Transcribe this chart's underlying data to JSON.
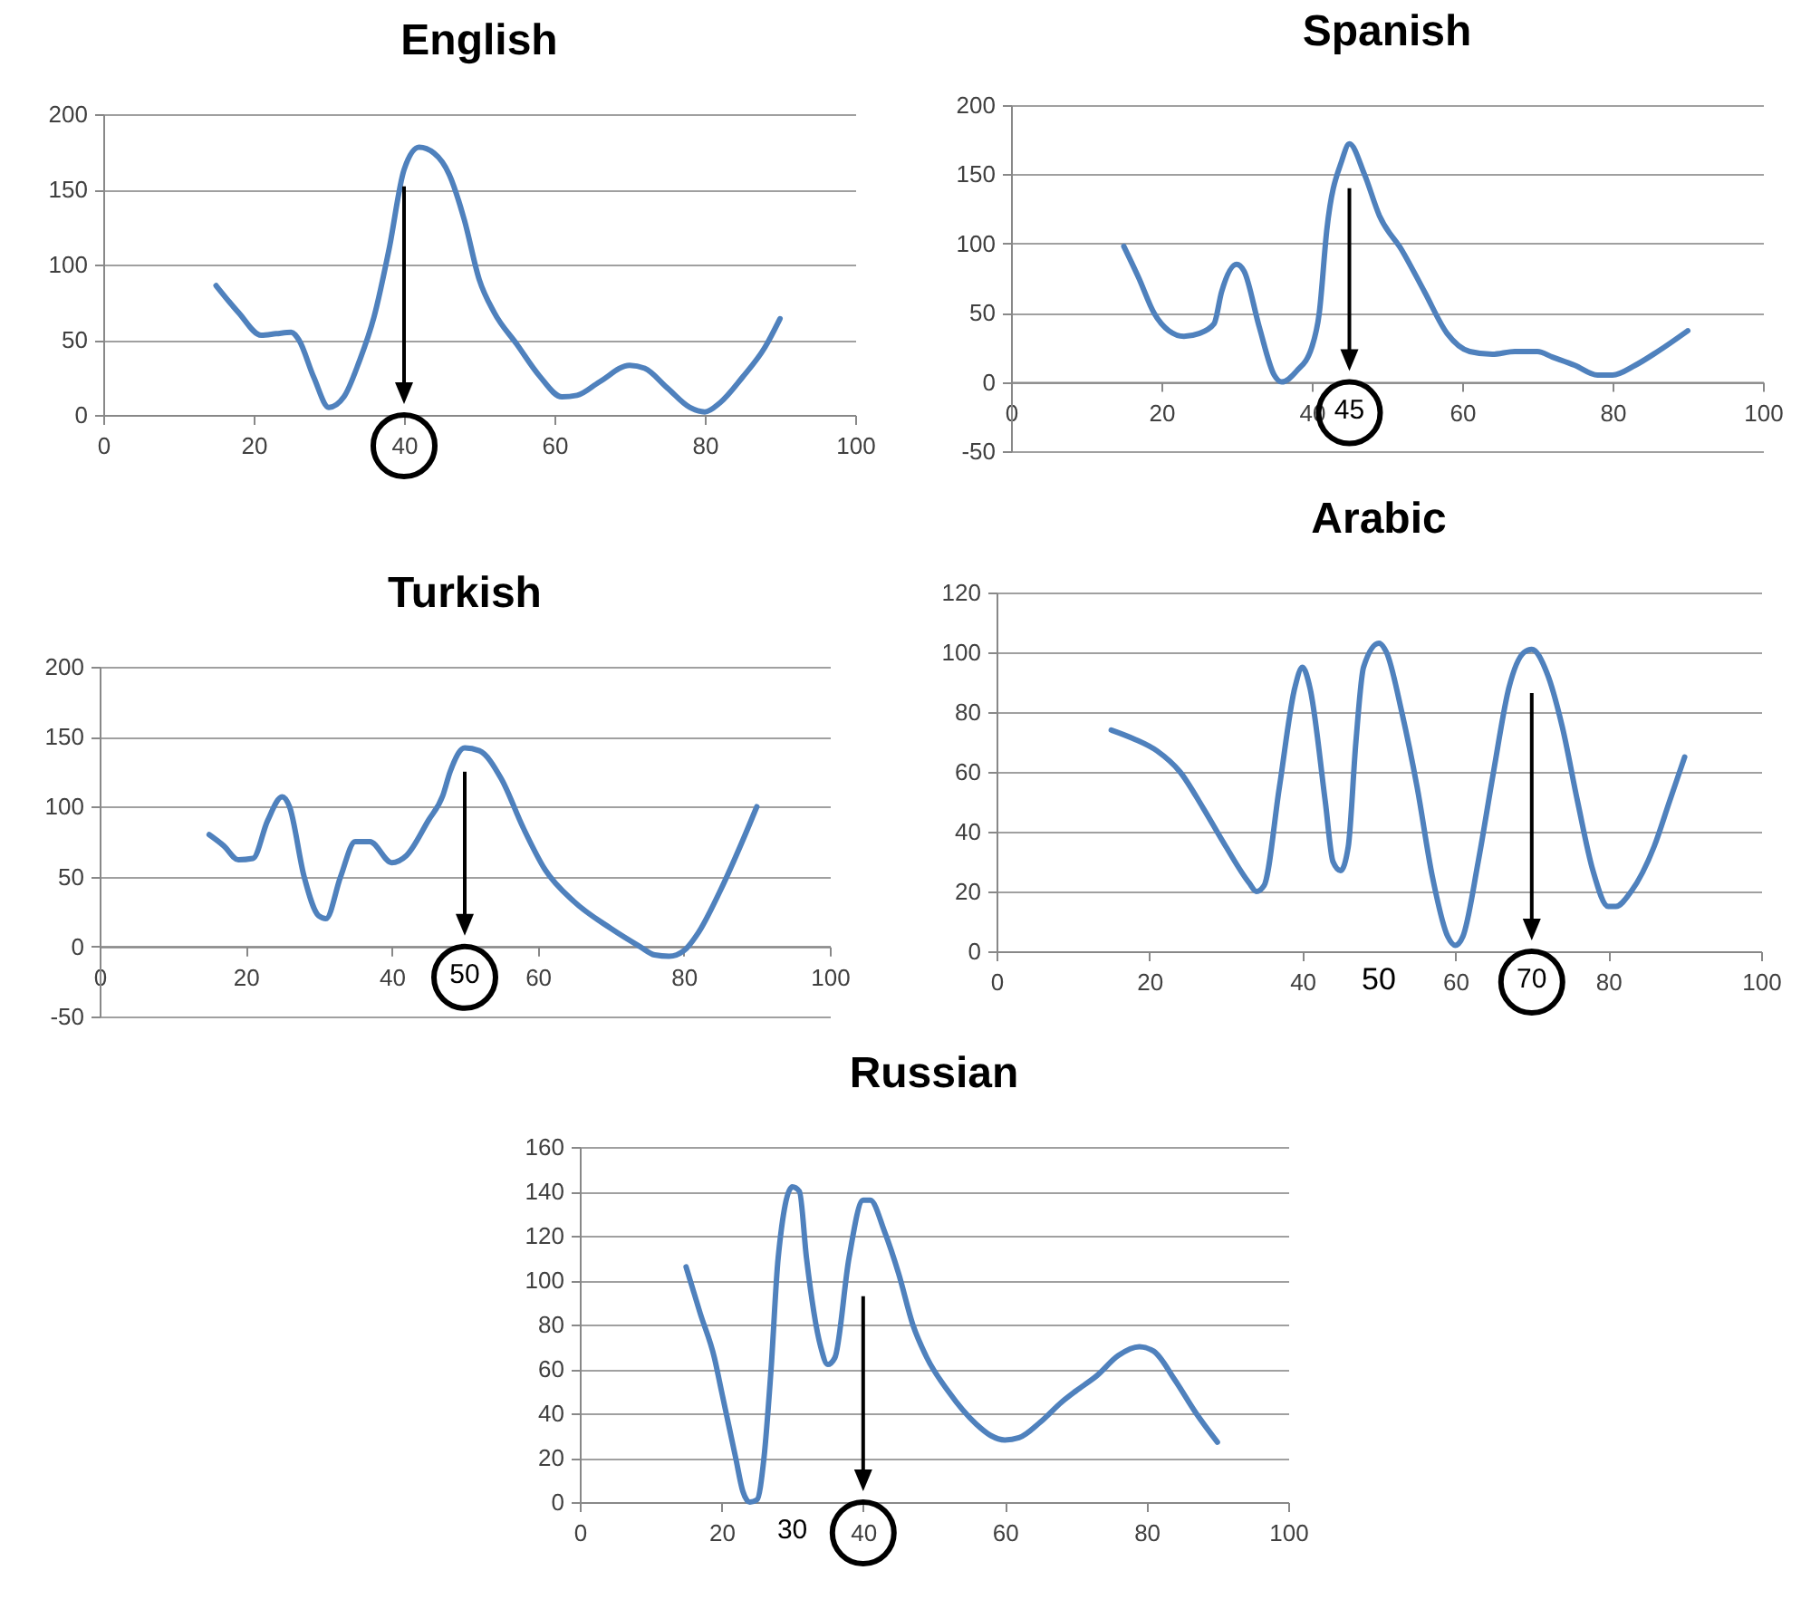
{
  "chart_data": [
    {
      "type": "line",
      "title": "English",
      "x": [
        15,
        18,
        21,
        23,
        25,
        26,
        28,
        30,
        32,
        34,
        36,
        38,
        40,
        42,
        44,
        46,
        48,
        50,
        52,
        55,
        58,
        61,
        63,
        66,
        70,
        72,
        75,
        78,
        80,
        82,
        85,
        88,
        90
      ],
      "series": [
        {
          "color": "#4f81bd",
          "values": [
            86,
            68,
            53,
            54,
            55,
            50,
            25,
            5,
            12,
            35,
            65,
            110,
            163,
            178,
            174,
            160,
            130,
            90,
            68,
            47,
            26,
            12,
            13,
            22,
            33,
            31,
            18,
            5,
            2,
            8,
            25,
            45,
            64
          ]
        }
      ],
      "xlim": [
        0,
        100
      ],
      "xticks": [
        0,
        20,
        40,
        60,
        80,
        100
      ],
      "ylim": [
        0,
        200
      ],
      "yticks": [
        0,
        50,
        100,
        150,
        200
      ],
      "grid": "y"
    },
    {
      "type": "line",
      "title": "Spanish",
      "x": [
        15,
        17,
        19,
        21,
        23,
        25,
        27,
        28,
        30,
        31,
        33,
        35,
        36,
        38,
        40,
        41,
        42,
        44,
        45,
        47,
        49,
        52,
        55,
        58,
        61,
        64,
        67,
        70,
        72,
        75,
        78,
        80,
        83,
        86,
        90
      ],
      "series": [
        {
          "color": "#4f81bd",
          "values": [
            98,
            75,
            50,
            37,
            33,
            35,
            42,
            65,
            85,
            80,
            40,
            5,
            0,
            8,
            25,
            50,
            110,
            160,
            172,
            150,
            120,
            95,
            65,
            35,
            22,
            20,
            22,
            22,
            18,
            12,
            5,
            5,
            12,
            22,
            37
          ]
        }
      ],
      "xlim": [
        0,
        100
      ],
      "xticks": [
        0,
        20,
        40,
        60,
        80,
        100
      ],
      "ylim": [
        -50,
        200
      ],
      "yticks": [
        -50,
        0,
        50,
        100,
        150,
        200
      ],
      "grid": "y",
      "annotations": [
        "45"
      ]
    },
    {
      "type": "line",
      "title": "Turkish",
      "x": [
        15,
        17,
        19,
        21,
        23,
        25,
        26,
        28,
        30,
        31,
        33,
        35,
        37,
        40,
        42,
        45,
        47,
        48,
        50,
        52,
        55,
        58,
        61,
        65,
        70,
        74,
        76,
        78,
        80,
        82,
        85,
        88,
        90
      ],
      "series": [
        {
          "color": "#4f81bd",
          "values": [
            80,
            72,
            62,
            63,
            90,
            107,
            100,
            50,
            22,
            20,
            50,
            75,
            75,
            60,
            65,
            90,
            108,
            125,
            142,
            140,
            120,
            85,
            55,
            32,
            13,
            0,
            -6,
            -7,
            -3,
            10,
            40,
            75,
            100
          ]
        }
      ],
      "xlim": [
        0,
        100
      ],
      "xticks": [
        0,
        20,
        40,
        60,
        80,
        100
      ],
      "ylim": [
        -50,
        200
      ],
      "yticks": [
        -50,
        0,
        50,
        100,
        150,
        200
      ],
      "grid": "y",
      "annotations": [
        "50"
      ]
    },
    {
      "type": "line",
      "title": "Arabic",
      "x": [
        15,
        18,
        21,
        24,
        27,
        30,
        33,
        34,
        35,
        37,
        39,
        40,
        41,
        43,
        44,
        45,
        46,
        47,
        48,
        50,
        51,
        53,
        55,
        57,
        59,
        60,
        61,
        63,
        65,
        67,
        69,
        70,
        72,
        74,
        76,
        78,
        80,
        81,
        83,
        86,
        88,
        90
      ],
      "series": [
        {
          "color": "#4f81bd",
          "values": [
            74,
            71,
            67,
            60,
            48,
            35,
            23,
            20,
            22,
            55,
            88,
            95,
            88,
            50,
            30,
            27,
            35,
            70,
            95,
            103,
            100,
            80,
            55,
            25,
            5,
            2,
            5,
            30,
            60,
            88,
            100,
            101,
            93,
            75,
            50,
            27,
            15,
            15,
            20,
            35,
            50,
            65
          ]
        }
      ],
      "xlim": [
        0,
        100
      ],
      "xticks": [
        0,
        20,
        40,
        60,
        80,
        100
      ],
      "ylim": [
        0,
        120
      ],
      "yticks": [
        0,
        20,
        40,
        60,
        80,
        100,
        120
      ],
      "grid": "y",
      "annotations": [
        "70",
        "50"
      ]
    },
    {
      "type": "line",
      "title": "Russian",
      "x": [
        15,
        17,
        19,
        20,
        22,
        23,
        24,
        25,
        26,
        27,
        28,
        30,
        31,
        32,
        34,
        35,
        36,
        38,
        40,
        41,
        43,
        45,
        47,
        49,
        52,
        56,
        58,
        60,
        62,
        65,
        68,
        70,
        73,
        76,
        79,
        81,
        84,
        87,
        90
      ],
      "series": [
        {
          "color": "#4f81bd",
          "values": [
            106,
            85,
            65,
            50,
            20,
            5,
            0,
            1,
            20,
            60,
            110,
            142,
            140,
            110,
            70,
            62,
            65,
            110,
            136,
            136,
            122,
            103,
            80,
            65,
            50,
            35,
            30,
            28,
            29,
            36,
            45,
            50,
            57,
            66,
            70,
            68,
            55,
            40,
            27
          ]
        }
      ],
      "xlim": [
        0,
        100
      ],
      "xticks": [
        0,
        20,
        40,
        60,
        80,
        100
      ],
      "ylim": [
        0,
        160
      ],
      "yticks": [
        0,
        20,
        40,
        60,
        80,
        100,
        120,
        140,
        160
      ],
      "grid": "y",
      "annotations": [
        "30"
      ]
    }
  ]
}
